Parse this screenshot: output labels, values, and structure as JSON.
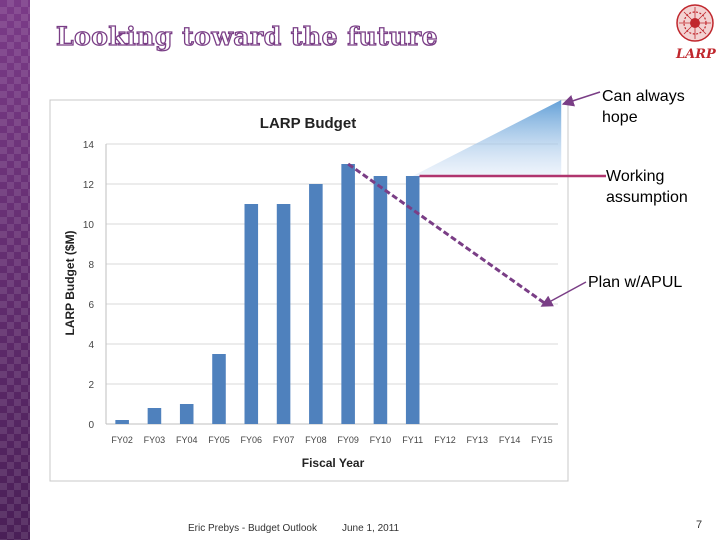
{
  "slide": {
    "title": "Looking toward the future",
    "logo_text": "LARP",
    "footer_author": "Eric Prebys - Budget Outlook",
    "footer_date": "June 1, 2011",
    "page_number": "7",
    "annotations": {
      "hope": "Can always hope",
      "working": "Working assumption",
      "plan": "Plan w/APUL"
    }
  },
  "chart_data": {
    "type": "bar",
    "title": "LARP Budget",
    "xlabel": "Fiscal Year",
    "ylabel": "LARP Budget ($M)",
    "categories": [
      "FY02",
      "FY03",
      "FY04",
      "FY05",
      "FY06",
      "FY07",
      "FY08",
      "FY09",
      "FY10",
      "FY11",
      "FY12",
      "FY13",
      "FY14",
      "FY15"
    ],
    "values": [
      0.2,
      0.8,
      1.0,
      3.5,
      11.0,
      11.0,
      12.0,
      13.0,
      12.4,
      12.4,
      null,
      null,
      null,
      null
    ],
    "ylim": [
      0,
      14
    ],
    "yticks": [
      0,
      2,
      4,
      6,
      8,
      10,
      12,
      14
    ],
    "grid": true,
    "legend": "none",
    "bar_color": "#4f81bd",
    "overlays": {
      "working_assumption": {
        "x_from": "FY11",
        "x_to": "FY15",
        "y": 12.4,
        "color": "#b0356e"
      },
      "plan_apul": {
        "x_from": "FY09",
        "y_from": 13.0,
        "x_to": "FY15",
        "y_to": 6.0,
        "color": "#7a3e86"
      },
      "hope_wedge": {
        "x_from": "FY11",
        "y_from": 12.4,
        "x_to": "FY15",
        "y_to": 16.2,
        "color": "#5b9bd5"
      }
    }
  }
}
